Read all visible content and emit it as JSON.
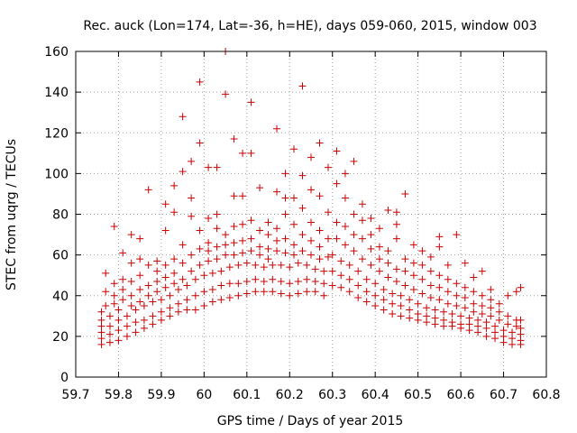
{
  "chart_data": {
    "type": "scatter",
    "title": "Rec. auck (Lon=174, Lat=-36, h=HE), days 059-060, 2015, window 003",
    "xlabel": "GPS time / Days of year 2015",
    "ylabel": "STEC from uqrg / TECUs",
    "xlim": [
      59.7,
      60.8
    ],
    "ylim": [
      0,
      160
    ],
    "xticks": [
      "59.7",
      "59.8",
      "59.9",
      "60",
      "60.1",
      "60.2",
      "60.3",
      "60.4",
      "60.5",
      "60.6",
      "60.7",
      "60.8"
    ],
    "yticks": [
      "0",
      "20",
      "40",
      "60",
      "80",
      "100",
      "120",
      "140",
      "160"
    ],
    "grid": true,
    "marker": "plus",
    "color": "#cc0000",
    "points": [
      [
        59.76,
        16
      ],
      [
        59.76,
        19
      ],
      [
        59.76,
        22
      ],
      [
        59.76,
        25
      ],
      [
        59.76,
        28
      ],
      [
        59.76,
        32
      ],
      [
        59.77,
        35
      ],
      [
        59.77,
        42
      ],
      [
        59.77,
        51
      ],
      [
        59.78,
        17
      ],
      [
        59.78,
        21
      ],
      [
        59.78,
        25
      ],
      [
        59.78,
        30
      ],
      [
        59.79,
        36
      ],
      [
        59.79,
        40
      ],
      [
        59.79,
        46
      ],
      [
        59.79,
        74
      ],
      [
        59.8,
        18
      ],
      [
        59.8,
        23
      ],
      [
        59.8,
        28
      ],
      [
        59.8,
        33
      ],
      [
        59.81,
        38
      ],
      [
        59.81,
        43
      ],
      [
        59.81,
        48
      ],
      [
        59.81,
        61
      ],
      [
        59.82,
        20
      ],
      [
        59.82,
        25
      ],
      [
        59.82,
        30
      ],
      [
        59.83,
        35
      ],
      [
        59.83,
        40
      ],
      [
        59.83,
        47
      ],
      [
        59.83,
        56
      ],
      [
        59.83,
        70
      ],
      [
        59.84,
        22
      ],
      [
        59.84,
        27
      ],
      [
        59.84,
        33
      ],
      [
        59.85,
        37
      ],
      [
        59.85,
        43
      ],
      [
        59.85,
        50
      ],
      [
        59.85,
        58
      ],
      [
        59.85,
        68
      ],
      [
        59.86,
        24
      ],
      [
        59.86,
        28
      ],
      [
        59.86,
        35
      ],
      [
        59.87,
        40
      ],
      [
        59.87,
        45
      ],
      [
        59.87,
        55
      ],
      [
        59.87,
        92
      ],
      [
        59.88,
        26
      ],
      [
        59.88,
        30
      ],
      [
        59.88,
        37
      ],
      [
        59.89,
        42
      ],
      [
        59.89,
        47
      ],
      [
        59.89,
        52
      ],
      [
        59.89,
        57
      ],
      [
        59.9,
        28
      ],
      [
        59.9,
        32
      ],
      [
        59.9,
        38
      ],
      [
        59.91,
        44
      ],
      [
        59.91,
        49
      ],
      [
        59.91,
        55
      ],
      [
        59.91,
        72
      ],
      [
        59.91,
        85
      ],
      [
        59.92,
        30
      ],
      [
        59.92,
        34
      ],
      [
        59.92,
        40
      ],
      [
        59.93,
        46
      ],
      [
        59.93,
        51
      ],
      [
        59.93,
        58
      ],
      [
        59.93,
        81
      ],
      [
        59.93,
        94
      ],
      [
        59.94,
        32
      ],
      [
        59.94,
        36
      ],
      [
        59.94,
        43
      ],
      [
        59.95,
        48
      ],
      [
        59.95,
        56
      ],
      [
        59.95,
        65
      ],
      [
        59.95,
        101
      ],
      [
        59.95,
        128
      ],
      [
        59.96,
        33
      ],
      [
        59.96,
        38
      ],
      [
        59.96,
        45
      ],
      [
        59.97,
        52
      ],
      [
        59.97,
        60
      ],
      [
        59.97,
        79
      ],
      [
        59.97,
        88
      ],
      [
        59.97,
        106
      ],
      [
        59.98,
        33
      ],
      [
        59.98,
        40
      ],
      [
        59.98,
        48
      ],
      [
        59.99,
        55
      ],
      [
        59.99,
        63
      ],
      [
        59.99,
        72
      ],
      [
        59.99,
        115
      ],
      [
        59.99,
        145
      ],
      [
        60.0,
        35
      ],
      [
        60.0,
        42
      ],
      [
        60.0,
        50
      ],
      [
        60.01,
        57
      ],
      [
        60.01,
        62
      ],
      [
        60.01,
        66
      ],
      [
        60.01,
        78
      ],
      [
        60.01,
        103
      ],
      [
        60.02,
        37
      ],
      [
        60.02,
        43
      ],
      [
        60.02,
        51
      ],
      [
        60.03,
        58
      ],
      [
        60.03,
        64
      ],
      [
        60.03,
        73
      ],
      [
        60.03,
        80
      ],
      [
        60.03,
        103
      ],
      [
        60.04,
        38
      ],
      [
        60.04,
        45
      ],
      [
        60.04,
        52
      ],
      [
        60.05,
        60
      ],
      [
        60.05,
        65
      ],
      [
        60.05,
        70
      ],
      [
        60.05,
        139
      ],
      [
        60.05,
        160
      ],
      [
        60.06,
        39
      ],
      [
        60.06,
        46
      ],
      [
        60.06,
        54
      ],
      [
        60.07,
        60
      ],
      [
        60.07,
        66
      ],
      [
        60.07,
        74
      ],
      [
        60.07,
        89
      ],
      [
        60.07,
        117
      ],
      [
        60.08,
        40
      ],
      [
        60.08,
        46
      ],
      [
        60.08,
        55
      ],
      [
        60.09,
        61
      ],
      [
        60.09,
        67
      ],
      [
        60.09,
        75
      ],
      [
        60.09,
        89
      ],
      [
        60.09,
        110
      ],
      [
        60.1,
        41
      ],
      [
        60.1,
        47
      ],
      [
        60.1,
        56
      ],
      [
        60.11,
        62
      ],
      [
        60.11,
        68
      ],
      [
        60.11,
        77
      ],
      [
        60.11,
        110
      ],
      [
        60.11,
        135
      ],
      [
        60.12,
        42
      ],
      [
        60.12,
        48
      ],
      [
        60.12,
        55
      ],
      [
        60.13,
        60
      ],
      [
        60.13,
        64
      ],
      [
        60.13,
        72
      ],
      [
        60.13,
        93
      ],
      [
        60.14,
        42
      ],
      [
        60.14,
        47
      ],
      [
        60.14,
        54
      ],
      [
        60.15,
        58
      ],
      [
        60.15,
        63
      ],
      [
        60.15,
        70
      ],
      [
        60.15,
        76
      ],
      [
        60.16,
        42
      ],
      [
        60.16,
        48
      ],
      [
        60.16,
        55
      ],
      [
        60.17,
        62
      ],
      [
        60.17,
        67
      ],
      [
        60.17,
        73
      ],
      [
        60.17,
        91
      ],
      [
        60.17,
        122
      ],
      [
        60.18,
        41
      ],
      [
        60.18,
        47
      ],
      [
        60.18,
        55
      ],
      [
        60.19,
        61
      ],
      [
        60.19,
        68
      ],
      [
        60.19,
        80
      ],
      [
        60.19,
        88
      ],
      [
        60.19,
        100
      ],
      [
        60.2,
        40
      ],
      [
        60.2,
        46
      ],
      [
        60.2,
        54
      ],
      [
        60.21,
        60
      ],
      [
        60.21,
        65
      ],
      [
        60.21,
        75
      ],
      [
        60.21,
        88
      ],
      [
        60.21,
        112
      ],
      [
        60.22,
        41
      ],
      [
        60.22,
        47
      ],
      [
        60.22,
        56
      ],
      [
        60.23,
        62
      ],
      [
        60.23,
        70
      ],
      [
        60.23,
        83
      ],
      [
        60.23,
        99
      ],
      [
        60.23,
        143
      ],
      [
        60.24,
        42
      ],
      [
        60.24,
        48
      ],
      [
        60.24,
        55
      ],
      [
        60.25,
        60
      ],
      [
        60.25,
        67
      ],
      [
        60.25,
        76
      ],
      [
        60.25,
        92
      ],
      [
        60.25,
        108
      ],
      [
        60.26,
        42
      ],
      [
        60.26,
        47
      ],
      [
        60.26,
        53
      ],
      [
        60.27,
        58
      ],
      [
        60.27,
        64
      ],
      [
        60.27,
        72
      ],
      [
        60.27,
        89
      ],
      [
        60.27,
        115
      ],
      [
        60.28,
        40
      ],
      [
        60.28,
        46
      ],
      [
        60.28,
        52
      ],
      [
        60.29,
        59
      ],
      [
        60.29,
        68
      ],
      [
        60.29,
        81
      ],
      [
        60.29,
        103
      ],
      [
        60.3,
        45
      ],
      [
        60.3,
        52
      ],
      [
        60.3,
        60
      ],
      [
        60.31,
        68
      ],
      [
        60.31,
        76
      ],
      [
        60.31,
        95
      ],
      [
        60.31,
        111
      ],
      [
        60.32,
        44
      ],
      [
        60.32,
        50
      ],
      [
        60.32,
        57
      ],
      [
        60.33,
        65
      ],
      [
        60.33,
        74
      ],
      [
        60.33,
        88
      ],
      [
        60.33,
        100
      ],
      [
        60.34,
        42
      ],
      [
        60.34,
        48
      ],
      [
        60.34,
        55
      ],
      [
        60.35,
        62
      ],
      [
        60.35,
        70
      ],
      [
        60.35,
        80
      ],
      [
        60.35,
        106
      ],
      [
        60.36,
        39
      ],
      [
        60.36,
        45
      ],
      [
        60.36,
        52
      ],
      [
        60.37,
        58
      ],
      [
        60.37,
        68
      ],
      [
        60.37,
        77
      ],
      [
        60.37,
        85
      ],
      [
        60.38,
        37
      ],
      [
        60.38,
        42
      ],
      [
        60.38,
        48
      ],
      [
        60.39,
        55
      ],
      [
        60.39,
        63
      ],
      [
        60.39,
        70
      ],
      [
        60.39,
        78
      ],
      [
        60.4,
        35
      ],
      [
        60.4,
        40
      ],
      [
        60.4,
        46
      ],
      [
        60.41,
        52
      ],
      [
        60.41,
        58
      ],
      [
        60.41,
        64
      ],
      [
        60.41,
        73
      ],
      [
        60.42,
        33
      ],
      [
        60.42,
        38
      ],
      [
        60.42,
        43
      ],
      [
        60.43,
        49
      ],
      [
        60.43,
        56
      ],
      [
        60.43,
        62
      ],
      [
        60.43,
        82
      ],
      [
        60.44,
        31
      ],
      [
        60.44,
        36
      ],
      [
        60.44,
        41
      ],
      [
        60.45,
        47
      ],
      [
        60.45,
        53
      ],
      [
        60.45,
        68
      ],
      [
        60.45,
        75
      ],
      [
        60.45,
        81
      ],
      [
        60.46,
        30
      ],
      [
        60.46,
        35
      ],
      [
        60.46,
        40
      ],
      [
        60.47,
        45
      ],
      [
        60.47,
        52
      ],
      [
        60.47,
        58
      ],
      [
        60.47,
        90
      ],
      [
        60.48,
        29
      ],
      [
        60.48,
        33
      ],
      [
        60.48,
        38
      ],
      [
        60.49,
        43
      ],
      [
        60.49,
        50
      ],
      [
        60.49,
        56
      ],
      [
        60.49,
        65
      ],
      [
        60.5,
        28
      ],
      [
        60.5,
        31
      ],
      [
        60.5,
        36
      ],
      [
        60.51,
        41
      ],
      [
        60.51,
        48
      ],
      [
        60.51,
        55
      ],
      [
        60.51,
        62
      ],
      [
        60.52,
        27
      ],
      [
        60.52,
        30
      ],
      [
        60.52,
        34
      ],
      [
        60.53,
        39
      ],
      [
        60.53,
        45
      ],
      [
        60.53,
        52
      ],
      [
        60.53,
        59
      ],
      [
        60.54,
        26
      ],
      [
        60.54,
        29
      ],
      [
        60.54,
        33
      ],
      [
        60.55,
        38
      ],
      [
        60.55,
        44
      ],
      [
        60.55,
        50
      ],
      [
        60.55,
        64
      ],
      [
        60.55,
        69
      ],
      [
        60.56,
        25
      ],
      [
        60.56,
        28
      ],
      [
        60.56,
        32
      ],
      [
        60.57,
        36
      ],
      [
        60.57,
        42
      ],
      [
        60.57,
        48
      ],
      [
        60.57,
        55
      ],
      [
        60.58,
        25
      ],
      [
        60.58,
        27
      ],
      [
        60.58,
        31
      ],
      [
        60.59,
        35
      ],
      [
        60.59,
        40
      ],
      [
        60.59,
        46
      ],
      [
        60.59,
        70
      ],
      [
        60.6,
        24
      ],
      [
        60.6,
        26
      ],
      [
        60.6,
        30
      ],
      [
        60.61,
        34
      ],
      [
        60.61,
        39
      ],
      [
        60.61,
        44
      ],
      [
        60.61,
        56
      ],
      [
        60.62,
        23
      ],
      [
        60.62,
        26
      ],
      [
        60.62,
        29
      ],
      [
        60.63,
        32
      ],
      [
        60.63,
        36
      ],
      [
        60.63,
        42
      ],
      [
        60.63,
        49
      ],
      [
        60.64,
        22
      ],
      [
        60.64,
        25
      ],
      [
        60.64,
        28
      ],
      [
        60.65,
        31
      ],
      [
        60.65,
        35
      ],
      [
        60.65,
        40
      ],
      [
        60.65,
        52
      ],
      [
        60.66,
        20
      ],
      [
        60.66,
        24
      ],
      [
        60.66,
        27
      ],
      [
        60.67,
        30
      ],
      [
        60.67,
        34
      ],
      [
        60.67,
        38
      ],
      [
        60.67,
        43
      ],
      [
        60.68,
        19
      ],
      [
        60.68,
        22
      ],
      [
        60.68,
        25
      ],
      [
        60.69,
        28
      ],
      [
        60.69,
        32
      ],
      [
        60.69,
        36
      ],
      [
        60.7,
        17
      ],
      [
        60.7,
        20
      ],
      [
        60.7,
        23
      ],
      [
        60.71,
        26
      ],
      [
        60.71,
        30
      ],
      [
        60.71,
        40
      ],
      [
        60.72,
        16
      ],
      [
        60.72,
        19
      ],
      [
        60.72,
        22
      ],
      [
        60.73,
        25
      ],
      [
        60.73,
        28
      ],
      [
        60.73,
        42
      ],
      [
        60.74,
        16
      ],
      [
        60.74,
        18
      ],
      [
        60.74,
        21
      ],
      [
        60.74,
        24
      ],
      [
        60.74,
        28
      ],
      [
        60.74,
        44
      ]
    ]
  }
}
